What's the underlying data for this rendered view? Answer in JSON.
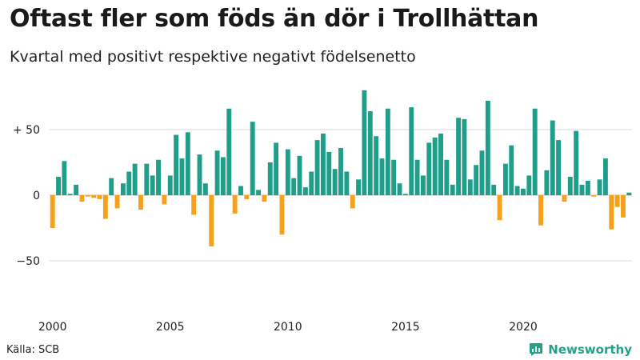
{
  "header": {
    "title": "Oftast fler som föds än dör i Trollhättan",
    "subtitle": "Kvartal med positivt respektive negativt födelsenetto"
  },
  "footer": {
    "source": "Källa: SCB",
    "brand": "Newsworthy"
  },
  "colors": {
    "positive": "#1f9e8a",
    "negative": "#f5a11c",
    "grid": "#d9d9d9",
    "brand": "#27a08a"
  },
  "chart_data": {
    "type": "bar",
    "title": "Oftast fler som föds än dör i Trollhättan",
    "subtitle": "Kvartal med positivt respektive negativt födelsenetto",
    "x_start": "2000",
    "x_period": "quarter",
    "xtick_labels": [
      "2000",
      "2005",
      "2010",
      "2015",
      "2020"
    ],
    "ytick_values": [
      -50,
      0,
      50
    ],
    "ytick_labels": [
      "−50",
      "0",
      "+ 50"
    ],
    "ylim": [
      -90,
      80
    ],
    "grid": true,
    "series": [
      {
        "values": [
          -25,
          14,
          26,
          1,
          8,
          -5,
          -1,
          -2,
          -3,
          -18,
          13,
          -10,
          9,
          18,
          24,
          -11,
          24,
          15,
          27,
          -7,
          15,
          46,
          28,
          48,
          -15,
          31,
          9,
          -39,
          34,
          29,
          66,
          -14,
          7,
          -3,
          56,
          4,
          -5,
          25,
          40,
          -30,
          35,
          13,
          30,
          6,
          18,
          42,
          47,
          33,
          20,
          36,
          18,
          -10,
          12,
          80,
          64,
          45,
          28,
          66,
          27,
          9,
          1,
          67,
          27,
          15,
          40,
          44,
          47,
          27,
          8,
          59,
          58,
          12,
          23,
          34,
          72,
          8,
          -19,
          24,
          38,
          7,
          5,
          15,
          66,
          -23,
          19,
          57,
          42,
          -5,
          14,
          49,
          8,
          11,
          -1,
          12,
          28,
          -26,
          -9,
          -17,
          2
        ]
      }
    ]
  }
}
